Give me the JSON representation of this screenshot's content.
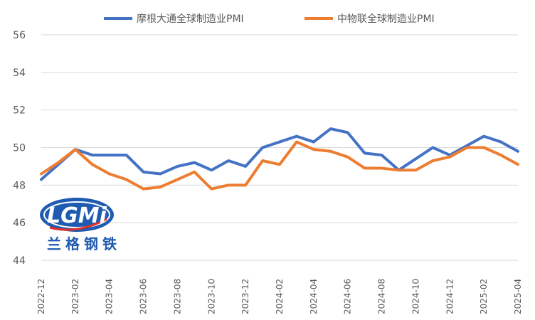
{
  "chart_data": {
    "type": "line",
    "x": [
      "2022-12",
      "2023-01",
      "2023-02",
      "2023-03",
      "2023-04",
      "2023-05",
      "2023-06",
      "2023-07",
      "2023-08",
      "2023-09",
      "2023-10",
      "2023-11",
      "2023-12",
      "2024-01",
      "2024-02",
      "2024-03",
      "2024-04",
      "2024-05",
      "2024-06",
      "2024-07",
      "2024-08",
      "2024-09",
      "2024-10",
      "2024-11",
      "2024-12",
      "2025-01",
      "2025-02",
      "2025-03",
      "2025-04"
    ],
    "x_tick_labels": [
      "2022-12",
      "2023-02",
      "2023-04",
      "2023-06",
      "2023-08",
      "2023-10",
      "2023-12",
      "2024-02",
      "2024-04",
      "2024-06",
      "2024-08",
      "2024-10",
      "2024-12",
      "2025-02",
      "2025-04"
    ],
    "ylim": [
      44,
      56
    ],
    "y_ticks": [
      44,
      46,
      48,
      50,
      52,
      54,
      56
    ],
    "grid": "horizontal",
    "legend_position": "top",
    "series": [
      {
        "name": "摩根大通全球制造业PMI",
        "color": "#4472c4",
        "values": [
          48.3,
          49.1,
          49.9,
          49.6,
          49.6,
          49.6,
          48.7,
          48.6,
          49.0,
          49.2,
          48.8,
          49.3,
          49.0,
          50.0,
          50.3,
          50.6,
          50.3,
          51.0,
          50.8,
          49.7,
          49.6,
          48.8,
          49.4,
          50.0,
          49.6,
          50.1,
          50.6,
          50.3,
          49.8
        ]
      },
      {
        "name": "中物联全球制造业PMI",
        "color": "#ed7d31",
        "values": [
          48.6,
          49.2,
          49.9,
          49.1,
          48.6,
          48.3,
          47.8,
          47.9,
          48.3,
          48.7,
          47.8,
          48.0,
          48.0,
          49.3,
          49.1,
          50.3,
          49.9,
          49.8,
          49.5,
          48.9,
          48.9,
          48.8,
          48.8,
          49.3,
          49.5,
          50.0,
          50.0,
          49.6,
          49.1
        ]
      }
    ]
  },
  "logo": {
    "wordmark": "LGMi",
    "chinese": "兰格钢铁",
    "colors": {
      "blue": "#1f5bb0",
      "red": "#e0302a",
      "light": "#ffffff"
    }
  }
}
